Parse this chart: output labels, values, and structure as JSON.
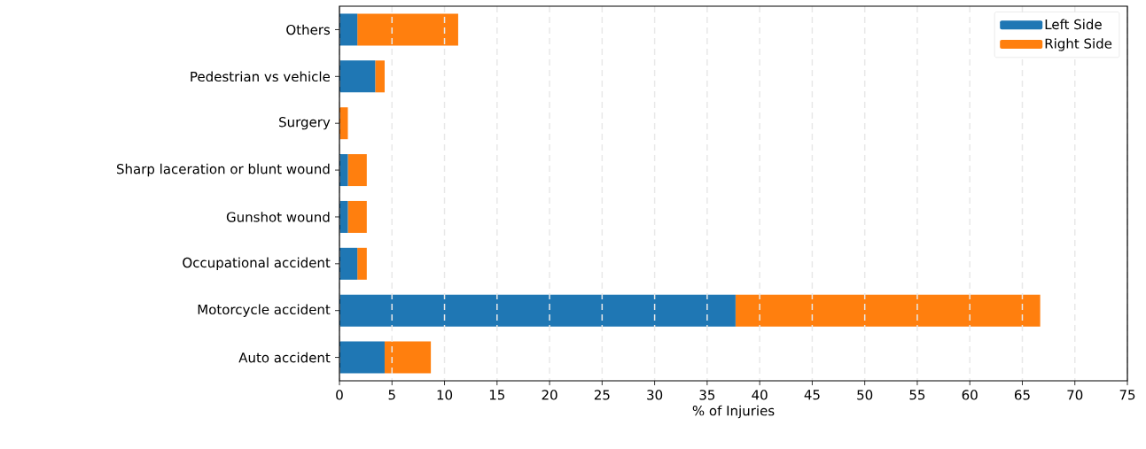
{
  "chart_data": {
    "type": "bar",
    "orientation": "horizontal",
    "stacked": true,
    "categories": [
      "Others",
      "Pedestrian vs vehicle",
      "Surgery",
      "Sharp laceration or blunt wound",
      "Gunshot wound",
      "Occupational accident",
      "Motorcycle accident",
      "Auto accident"
    ],
    "series": [
      {
        "name": "Left Side",
        "color": "#1f77b4",
        "values": [
          1.7,
          3.4,
          0,
          0.8,
          0.8,
          1.7,
          37.7,
          4.3
        ]
      },
      {
        "name": "Right Side",
        "color": "#ff7f0e",
        "values": [
          9.6,
          0.9,
          0.8,
          1.8,
          1.8,
          0.9,
          29.0,
          4.4
        ]
      }
    ],
    "xlabel": "% of Injuries",
    "xlim": [
      0,
      75
    ],
    "xticks": [
      0,
      5,
      10,
      15,
      20,
      25,
      30,
      35,
      40,
      45,
      50,
      55,
      60,
      65,
      70,
      75
    ],
    "grid": "x",
    "legend": "top right"
  }
}
